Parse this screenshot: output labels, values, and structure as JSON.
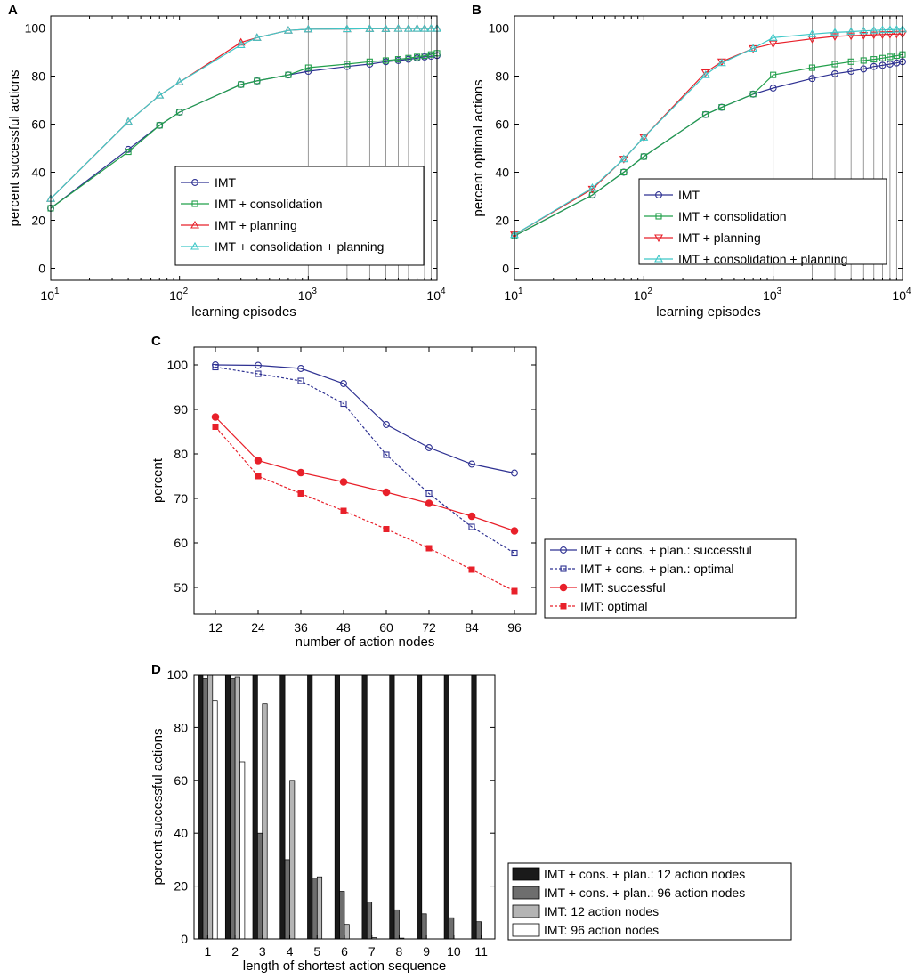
{
  "chart_data": [
    {
      "id": "A",
      "type": "line",
      "panel_label": "A",
      "xscale": "log",
      "xlim": [
        10,
        10000
      ],
      "ylim": [
        -5,
        105
      ],
      "xlabel": "learning episodes",
      "ylabel": "percent successful actions",
      "x_ticks": [
        {
          "value": 10,
          "base": "10",
          "exp": "1"
        },
        {
          "value": 100,
          "base": "10",
          "exp": "2"
        },
        {
          "value": 1000,
          "base": "10",
          "exp": "3"
        },
        {
          "value": 10000,
          "base": "10",
          "exp": "4"
        }
      ],
      "y_ticks": [
        "0",
        "20",
        "40",
        "60",
        "80",
        "100"
      ],
      "vertical_gridlines": [
        1000,
        2000,
        3000,
        4000,
        5000,
        6000,
        7000,
        8000,
        9000,
        10000
      ],
      "legend_position": "bottom-right",
      "x": [
        10,
        40,
        70,
        100,
        300,
        400,
        700,
        1000,
        2000,
        3000,
        4000,
        5000,
        6000,
        7000,
        8000,
        9000,
        10000
      ],
      "series": [
        {
          "name": "IMT",
          "color": "#2e3192",
          "marker": "circle",
          "x": [
            10,
            40,
            70,
            100,
            300,
            400,
            700,
            1000,
            2000,
            3000,
            4000,
            5000,
            6000,
            7000,
            8000,
            9000,
            10000
          ],
          "values": [
            25,
            49.5,
            59.5,
            65,
            76.5,
            78,
            80.5,
            82,
            84,
            85,
            86,
            86.5,
            87,
            87.5,
            88,
            88.3,
            88.6
          ]
        },
        {
          "name": "IMT + consolidation",
          "color": "#22a04b",
          "marker": "square",
          "x": [
            10,
            40,
            70,
            100,
            300,
            400,
            700,
            1000,
            2000,
            3000,
            4000,
            5000,
            6000,
            7000,
            8000,
            9000,
            10000
          ],
          "values": [
            25,
            48.5,
            59.5,
            65,
            76.5,
            78,
            80.5,
            83.5,
            85,
            86,
            86.5,
            87,
            87.5,
            88,
            88.5,
            89,
            89.5
          ]
        },
        {
          "name": "IMT + planning",
          "color": "#e8202a",
          "marker": "triangle-up",
          "x": [
            10,
            40,
            70,
            100,
            300,
            400,
            700,
            1000,
            2000,
            3000,
            4000,
            5000,
            6000,
            7000,
            8000,
            9000,
            10000
          ],
          "values": [
            29,
            61,
            72,
            77.5,
            94,
            96,
            99,
            99.5,
            99.6,
            99.7,
            99.7,
            99.8,
            99.8,
            99.8,
            99.8,
            99.8,
            99.8
          ]
        },
        {
          "name": "IMT + consolidation + planning",
          "color": "#3ec8c8",
          "marker": "triangle-up",
          "x": [
            10,
            40,
            70,
            100,
            300,
            400,
            700,
            1000,
            2000,
            3000,
            4000,
            5000,
            6000,
            7000,
            8000,
            9000,
            10000
          ],
          "values": [
            29,
            61,
            72,
            77.5,
            93,
            96,
            99,
            99.5,
            99.6,
            99.7,
            99.7,
            99.8,
            99.8,
            99.8,
            99.8,
            99.8,
            99.8
          ]
        }
      ]
    },
    {
      "id": "B",
      "type": "line",
      "panel_label": "B",
      "xscale": "log",
      "xlim": [
        10,
        10000
      ],
      "ylim": [
        -5,
        105
      ],
      "xlabel": "learning episodes",
      "ylabel": "percent optimal actions",
      "x_ticks": [
        {
          "value": 10,
          "base": "10",
          "exp": "1"
        },
        {
          "value": 100,
          "base": "10",
          "exp": "2"
        },
        {
          "value": 1000,
          "base": "10",
          "exp": "3"
        },
        {
          "value": 10000,
          "base": "10",
          "exp": "4"
        }
      ],
      "y_ticks": [
        "0",
        "20",
        "40",
        "60",
        "80",
        "100"
      ],
      "vertical_gridlines": [
        1000,
        2000,
        3000,
        4000,
        5000,
        6000,
        7000,
        8000,
        9000,
        10000
      ],
      "legend_position": "bottom-right",
      "series": [
        {
          "name": "IMT",
          "color": "#2e3192",
          "marker": "circle",
          "x": [
            10,
            40,
            70,
            100,
            300,
            400,
            700,
            1000,
            2000,
            3000,
            4000,
            5000,
            6000,
            7000,
            8000,
            9000,
            10000
          ],
          "values": [
            13.5,
            30.5,
            40,
            46.5,
            64,
            67,
            72.5,
            75,
            79,
            81,
            82,
            83,
            84,
            84.5,
            85,
            85.5,
            86
          ]
        },
        {
          "name": "IMT + consolidation",
          "color": "#22a04b",
          "marker": "square",
          "x": [
            10,
            40,
            70,
            100,
            300,
            400,
            700,
            1000,
            2000,
            3000,
            4000,
            5000,
            6000,
            7000,
            8000,
            9000,
            10000
          ],
          "values": [
            13.5,
            30.5,
            40,
            46.5,
            64,
            67,
            72.5,
            80.5,
            83.5,
            85,
            86,
            86.5,
            87,
            87.5,
            88,
            88.5,
            89
          ]
        },
        {
          "name": "IMT + planning",
          "color": "#e8202a",
          "marker": "triangle-down",
          "x": [
            10,
            40,
            70,
            100,
            300,
            400,
            700,
            1000,
            2000,
            3000,
            4000,
            5000,
            6000,
            7000,
            8000,
            9000,
            10000
          ],
          "values": [
            14,
            33,
            45.5,
            54.5,
            81.5,
            86,
            91.5,
            93.5,
            95.5,
            96.5,
            96.8,
            97,
            97.2,
            97.3,
            97.4,
            97.5,
            97.5
          ]
        },
        {
          "name": "IMT + consolidation + planning",
          "color": "#3ec8c8",
          "marker": "triangle-up",
          "x": [
            10,
            40,
            70,
            100,
            300,
            400,
            700,
            1000,
            2000,
            3000,
            4000,
            5000,
            6000,
            7000,
            8000,
            9000,
            10000
          ],
          "values": [
            14,
            33.5,
            45.5,
            54.5,
            80.5,
            85.5,
            91.5,
            96,
            97.5,
            98.2,
            98.5,
            98.8,
            99,
            99.2,
            99.3,
            99.4,
            99.5
          ]
        }
      ]
    },
    {
      "id": "C",
      "type": "line",
      "panel_label": "C",
      "xlim": [
        6,
        102
      ],
      "ylim": [
        44,
        104
      ],
      "xlabel": "number of action nodes",
      "ylabel": "percent",
      "categories": [
        12,
        24,
        36,
        48,
        60,
        72,
        84,
        96
      ],
      "x_ticks": [
        "12",
        "24",
        "36",
        "48",
        "60",
        "72",
        "84",
        "96"
      ],
      "y_ticks": [
        "50",
        "60",
        "70",
        "80",
        "90",
        "100"
      ],
      "legend_position": "outside-right",
      "series": [
        {
          "name": "IMT + cons. + plan.: successful",
          "color": "#2e3192",
          "marker": "circle-open",
          "dash": false,
          "values": [
            100,
            99.9,
            99.2,
            95.8,
            86.6,
            81.4,
            77.7,
            75.7
          ]
        },
        {
          "name": "IMT + cons. + plan.: optimal",
          "color": "#2e3192",
          "marker": "square-open",
          "dash": true,
          "values": [
            99.5,
            98,
            96.4,
            91.3,
            79.8,
            71.1,
            63.6,
            57.7
          ]
        },
        {
          "name": "IMT: successful",
          "color": "#e8202a",
          "marker": "circle-filled",
          "dash": false,
          "values": [
            88.3,
            78.5,
            75.8,
            73.7,
            71.4,
            68.9,
            66,
            62.7
          ]
        },
        {
          "name": "IMT: optimal",
          "color": "#e8202a",
          "marker": "square-filled",
          "dash": true,
          "values": [
            86.1,
            75,
            71.1,
            67.2,
            63.1,
            58.8,
            54,
            49.2
          ]
        }
      ]
    },
    {
      "id": "D",
      "type": "bar",
      "panel_label": "D",
      "ylim": [
        0,
        100
      ],
      "xlabel": "length of shortest action sequence",
      "ylabel": "percent successful actions",
      "categories": [
        "1",
        "2",
        "3",
        "4",
        "5",
        "6",
        "7",
        "8",
        "9",
        "10",
        "11"
      ],
      "y_ticks": [
        "0",
        "20",
        "40",
        "60",
        "80",
        "100"
      ],
      "legend_position": "outside-right",
      "series": [
        {
          "name": "IMT + cons. + plan.: 12 action nodes",
          "color": "#1a1a1a",
          "values": [
            100,
            100,
            100,
            100,
            100,
            100,
            100,
            100,
            100,
            100,
            100
          ]
        },
        {
          "name": "IMT + cons. + plan.: 96 action nodes",
          "color": "#6e6e6e",
          "values": [
            98.5,
            98.5,
            40,
            30,
            23,
            18,
            14,
            11,
            9.5,
            8,
            6.5
          ]
        },
        {
          "name": "IMT: 12 action nodes",
          "color": "#b4b4b4",
          "values": [
            100,
            99,
            89,
            60,
            23.5,
            5.5,
            0.5,
            0.3,
            0,
            0,
            0
          ]
        },
        {
          "name": "IMT: 96 action nodes",
          "color": "#ffffff",
          "values": [
            90,
            67,
            0,
            0,
            0,
            0,
            0,
            0,
            0,
            0,
            0
          ]
        }
      ]
    }
  ]
}
